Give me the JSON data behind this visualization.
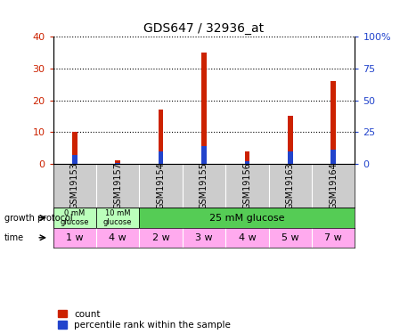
{
  "title": "GDS647 / 32936_at",
  "samples": [
    "GSM19153",
    "GSM19157",
    "GSM19154",
    "GSM19155",
    "GSM19156",
    "GSM19163",
    "GSM19164"
  ],
  "count_values": [
    10,
    1,
    17,
    35,
    4,
    15,
    26
  ],
  "percentile_values": [
    7.0,
    0.5,
    10.0,
    14.0,
    2.0,
    10.0,
    11.0
  ],
  "left_ylim": [
    0,
    40
  ],
  "right_ylim": [
    0,
    100
  ],
  "left_yticks": [
    0,
    10,
    20,
    30,
    40
  ],
  "right_yticks": [
    0,
    25,
    50,
    75,
    100
  ],
  "right_yticklabels": [
    "0",
    "25",
    "50",
    "75",
    "100%"
  ],
  "bar_color": "#cc2200",
  "percentile_color": "#2244cc",
  "bar_width": 0.12,
  "time_labels": [
    "1 w",
    "4 w",
    "2 w",
    "3 w",
    "4 w",
    "5 w",
    "7 w"
  ],
  "time_color": "#ffaaee",
  "sample_bg_color": "#cccccc",
  "growth_bg_light": "#bbffbb",
  "growth_bg_dark": "#55cc55",
  "legend_count_label": "count",
  "legend_percentile_label": "percentile rank within the sample",
  "left_tick_color": "#cc2200",
  "right_tick_color": "#2244cc"
}
